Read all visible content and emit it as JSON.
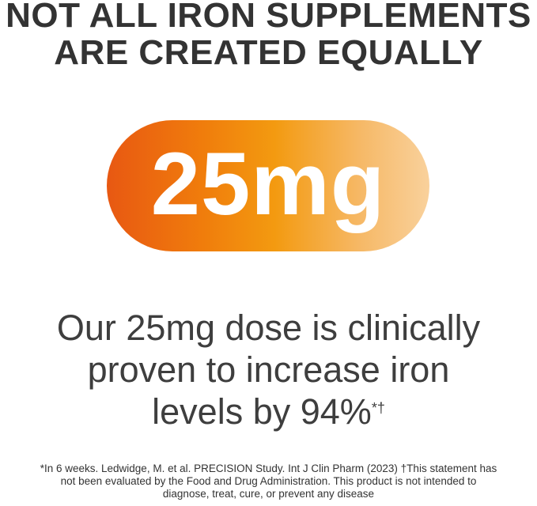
{
  "headline": {
    "line1": "NOT ALL IRON SUPPLEMENTS",
    "line2": "ARE CREATED EQUALLY"
  },
  "badge": {
    "dose": "25mg",
    "gradient_colors": [
      "#e85812",
      "#f39a10",
      "#f9d19c"
    ]
  },
  "claim": {
    "line1": "Our 25mg dose is clinically",
    "line2": "proven to increase iron",
    "line3": "levels by 94%",
    "marks": "*†"
  },
  "footnote": {
    "line1": "*In 6 weeks. Ledwidge, M. et al. PRECISION Study. Int J Clin Pharm (2023) †This statement has",
    "line2": "not been evaluated by the Food and Drug Administration. This product is not intended to",
    "line3": "diagnose, treat, cure, or prevent any disease"
  }
}
